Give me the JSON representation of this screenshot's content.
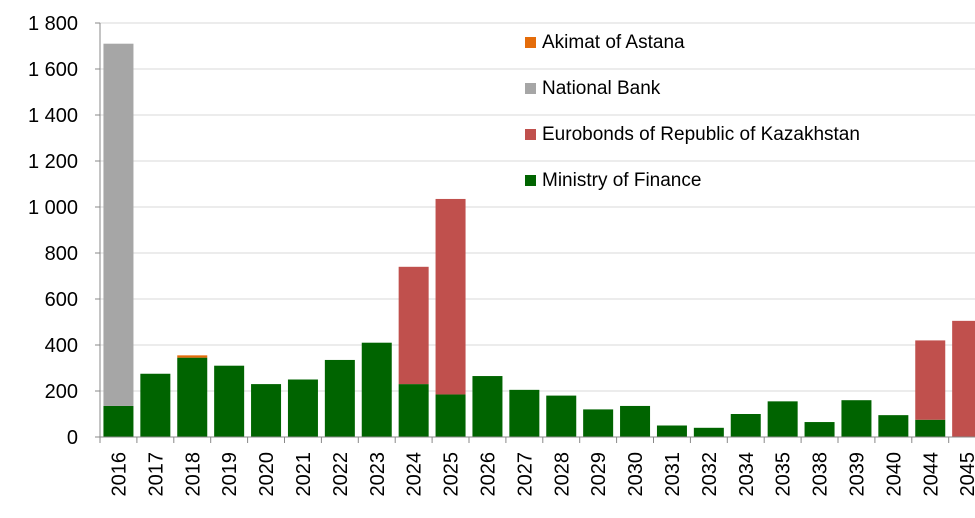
{
  "chart_data": {
    "type": "bar",
    "stacked": true,
    "title": "",
    "xlabel": "",
    "ylabel": "",
    "ylim": [
      0,
      1800
    ],
    "yticks": [
      0,
      200,
      400,
      600,
      800,
      1000,
      1200,
      1400,
      1600,
      1800
    ],
    "ytick_labels": [
      "0",
      "200",
      "400",
      "600",
      "800",
      "1 000",
      "1 200",
      "1 400",
      "1 600",
      "1 800"
    ],
    "grid": true,
    "legend_position": "top-right",
    "categories": [
      "2016",
      "2017",
      "2018",
      "2019",
      "2020",
      "2021",
      "2022",
      "2023",
      "2024",
      "2025",
      "2026",
      "2027",
      "2028",
      "2029",
      "2030",
      "2031",
      "2032",
      "2034",
      "2035",
      "2038",
      "2039",
      "2040",
      "2044",
      "2045"
    ],
    "series": [
      {
        "name": "Ministry of Finance",
        "color": "#006400",
        "values": [
          135,
          275,
          345,
          310,
          230,
          250,
          335,
          410,
          230,
          185,
          265,
          205,
          180,
          120,
          135,
          50,
          40,
          100,
          155,
          65,
          160,
          95,
          75,
          0
        ]
      },
      {
        "name": "Eurobonds of Republic of Kazakhstan",
        "color": "#c0504d",
        "values": [
          0,
          0,
          0,
          0,
          0,
          0,
          0,
          0,
          510,
          850,
          0,
          0,
          0,
          0,
          0,
          0,
          0,
          0,
          0,
          0,
          0,
          0,
          345,
          505
        ]
      },
      {
        "name": "National Bank",
        "color": "#a6a6a6",
        "values": [
          1575,
          0,
          0,
          0,
          0,
          0,
          0,
          0,
          0,
          0,
          0,
          0,
          0,
          0,
          0,
          0,
          0,
          0,
          0,
          0,
          0,
          0,
          0,
          0
        ]
      },
      {
        "name": "Akimat of Astana",
        "color": "#e46c0a",
        "values": [
          0,
          0,
          10,
          0,
          0,
          0,
          0,
          0,
          0,
          0,
          0,
          0,
          0,
          0,
          0,
          0,
          0,
          0,
          0,
          0,
          0,
          0,
          0,
          0
        ]
      }
    ],
    "legend_order": [
      "Akimat of Astana",
      "National Bank",
      "Eurobonds of Republic of Kazakhstan",
      "Ministry of Finance"
    ]
  }
}
